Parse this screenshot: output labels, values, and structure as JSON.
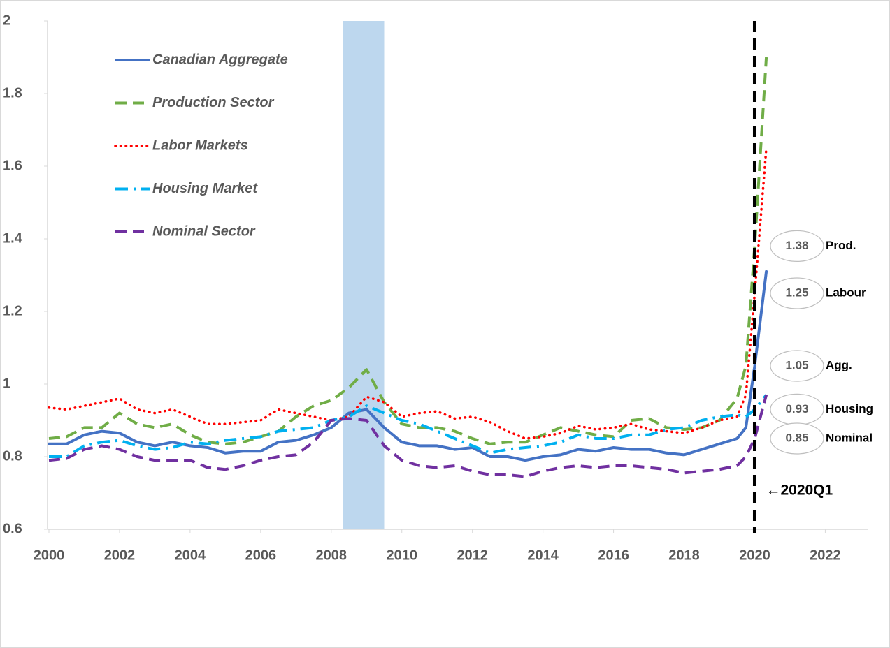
{
  "chart_data": {
    "type": "line",
    "xlim": [
      2000,
      2023.2
    ],
    "xticks": [
      2000,
      2002,
      2004,
      2006,
      2008,
      2010,
      2012,
      2014,
      2016,
      2018,
      2020,
      2022
    ],
    "ylim": [
      0.6,
      2
    ],
    "yticks": [
      0.6,
      0.8,
      1,
      1.2,
      1.4,
      1.6,
      1.8,
      2
    ],
    "shaded": [
      2008.33,
      2009.5
    ],
    "shaded_color": "#bdd7ee",
    "vline": {
      "x": 2020,
      "label": "←2020Q1"
    },
    "legend": "upper left",
    "x": [
      2000,
      2000.5,
      2001,
      2001.5,
      2002,
      2002.5,
      2003,
      2003.5,
      2004,
      2004.5,
      2005,
      2005.5,
      2006,
      2006.5,
      2007,
      2007.5,
      2008,
      2008.5,
      2009,
      2009.5,
      2010,
      2010.5,
      2011,
      2011.5,
      2012,
      2012.5,
      2013,
      2013.5,
      2014,
      2014.5,
      2015,
      2015.5,
      2016,
      2016.5,
      2017,
      2017.5,
      2018,
      2018.5,
      2019,
      2019.5,
      2019.75,
      2020,
      2020.33
    ],
    "series": [
      {
        "name": "Canadian Aggregate",
        "color": "#4472c4",
        "dash": "solid",
        "values": [
          0.835,
          0.835,
          0.86,
          0.87,
          0.865,
          0.84,
          0.83,
          0.84,
          0.83,
          0.825,
          0.81,
          0.815,
          0.815,
          0.84,
          0.845,
          0.86,
          0.88,
          0.92,
          0.93,
          0.88,
          0.84,
          0.83,
          0.83,
          0.82,
          0.825,
          0.8,
          0.8,
          0.79,
          0.8,
          0.805,
          0.82,
          0.815,
          0.825,
          0.82,
          0.82,
          0.81,
          0.805,
          0.82,
          0.835,
          0.85,
          0.88,
          1.05,
          1.31
        ]
      },
      {
        "name": "Production Sector",
        "color": "#70ad47",
        "dash": "dashed",
        "values": [
          0.85,
          0.855,
          0.88,
          0.88,
          0.92,
          0.89,
          0.88,
          0.89,
          0.86,
          0.84,
          0.835,
          0.84,
          0.855,
          0.87,
          0.91,
          0.94,
          0.955,
          0.99,
          1.04,
          0.95,
          0.89,
          0.88,
          0.88,
          0.87,
          0.85,
          0.835,
          0.84,
          0.84,
          0.86,
          0.88,
          0.87,
          0.86,
          0.855,
          0.9,
          0.905,
          0.88,
          0.875,
          0.88,
          0.9,
          0.96,
          1.05,
          1.38,
          1.9
        ]
      },
      {
        "name": "Labor Markets",
        "color": "#ff0000",
        "dash": "dotted",
        "values": [
          0.935,
          0.93,
          0.94,
          0.95,
          0.96,
          0.93,
          0.92,
          0.93,
          0.91,
          0.89,
          0.89,
          0.895,
          0.9,
          0.93,
          0.92,
          0.91,
          0.9,
          0.91,
          0.965,
          0.95,
          0.91,
          0.92,
          0.925,
          0.905,
          0.91,
          0.895,
          0.87,
          0.85,
          0.855,
          0.865,
          0.885,
          0.875,
          0.88,
          0.89,
          0.875,
          0.87,
          0.865,
          0.88,
          0.9,
          0.91,
          0.97,
          1.25,
          1.65
        ]
      },
      {
        "name": "Housing Market",
        "color": "#00b0f0",
        "dash": "dashdot",
        "values": [
          0.8,
          0.8,
          0.83,
          0.84,
          0.845,
          0.83,
          0.82,
          0.825,
          0.84,
          0.835,
          0.845,
          0.85,
          0.855,
          0.87,
          0.875,
          0.88,
          0.9,
          0.91,
          0.94,
          0.92,
          0.9,
          0.89,
          0.87,
          0.85,
          0.83,
          0.81,
          0.82,
          0.825,
          0.83,
          0.84,
          0.86,
          0.85,
          0.85,
          0.86,
          0.86,
          0.875,
          0.88,
          0.9,
          0.91,
          0.915,
          0.91,
          0.93,
          0.97
        ]
      },
      {
        "name": "Nominal Sector",
        "color": "#7030a0",
        "dash": "dashed",
        "values": [
          0.79,
          0.795,
          0.82,
          0.83,
          0.82,
          0.8,
          0.79,
          0.79,
          0.79,
          0.77,
          0.765,
          0.775,
          0.79,
          0.8,
          0.805,
          0.84,
          0.9,
          0.905,
          0.9,
          0.83,
          0.79,
          0.775,
          0.77,
          0.775,
          0.76,
          0.75,
          0.75,
          0.745,
          0.76,
          0.77,
          0.775,
          0.77,
          0.775,
          0.775,
          0.77,
          0.765,
          0.755,
          0.76,
          0.765,
          0.775,
          0.8,
          0.85,
          0.97
        ]
      }
    ],
    "annotations": [
      {
        "value": 1.38,
        "label": "Prod."
      },
      {
        "value": 1.25,
        "label": "Labour"
      },
      {
        "value": 1.05,
        "label": "Agg."
      },
      {
        "value": 0.93,
        "label": "Housing"
      },
      {
        "value": 0.85,
        "label": "Nominal"
      }
    ]
  }
}
